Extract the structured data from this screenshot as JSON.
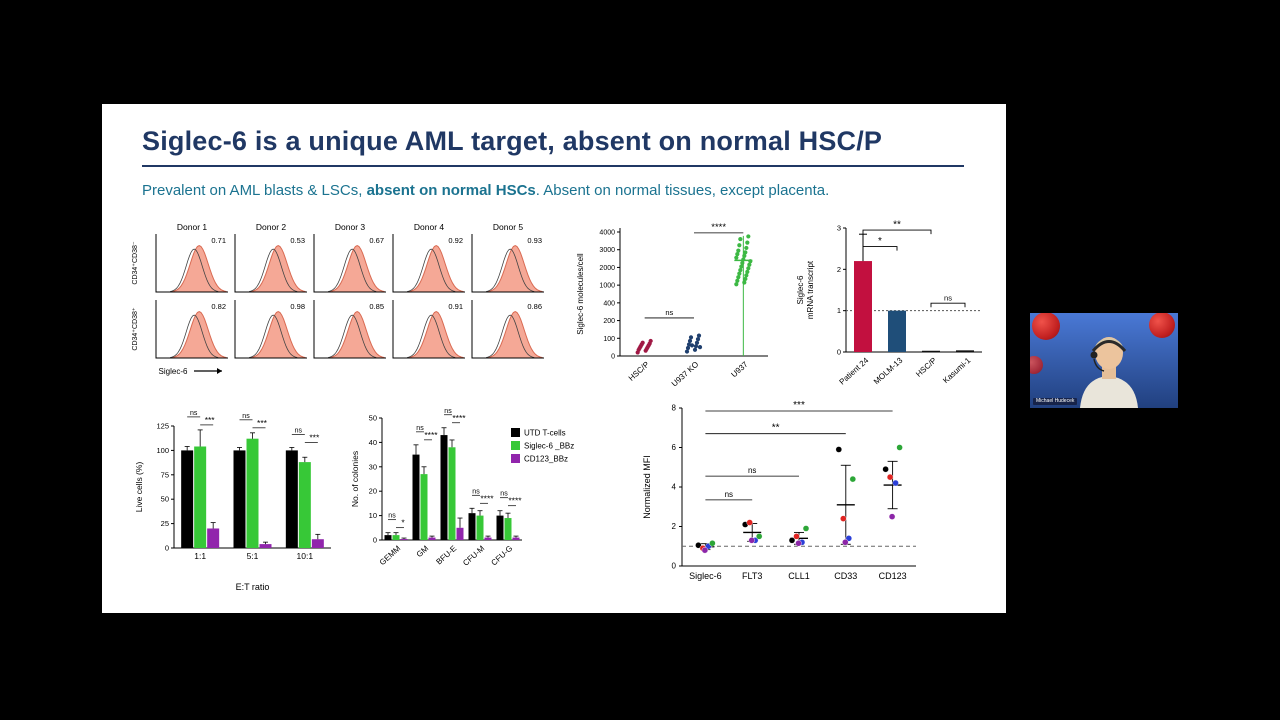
{
  "slide": {
    "title": "Siglec-6 is a unique AML target, absent on normal HSC/P",
    "subtitle_pre": "Prevalent on AML blasts & LSCs, ",
    "subtitle_bold": "absent on normal HSCs",
    "subtitle_post": ". Absent on normal tissues, except placenta.",
    "title_color": "#203864",
    "subtitle_color": "#1b7390"
  },
  "webcam": {
    "name_label": "Michael Hudecek"
  },
  "chart_data": [
    {
      "id": "flow",
      "type": "histogram-grid",
      "columns": [
        "Donor 1",
        "Donor 2",
        "Donor 3",
        "Donor 4",
        "Donor 5"
      ],
      "rows": [
        "CD34⁺CD38⁻",
        "CD34⁺CD38⁺"
      ],
      "values": [
        [
          0.71,
          0.53,
          0.67,
          0.92,
          0.93
        ],
        [
          0.82,
          0.98,
          0.85,
          0.91,
          0.86
        ]
      ],
      "xlabel": "Siglec-6",
      "fill_color": "#f5a896",
      "stroke_color": "#d96a52"
    },
    {
      "id": "scatter",
      "type": "scatter",
      "ylabel": "Siglec-6 molecules/cell",
      "categories": [
        "HSC/P",
        "U937 KO",
        "U937"
      ],
      "group_colors": [
        "#a01844",
        "#1f3f6e",
        "#3cb843"
      ],
      "ticks": [
        0,
        100,
        200,
        400,
        1000,
        2000,
        3000,
        4000
      ],
      "points": [
        [
          20,
          30,
          35,
          40,
          45,
          50,
          55,
          60,
          65,
          70,
          75,
          85
        ],
        [
          25,
          35,
          45,
          55,
          65,
          75,
          85,
          95,
          105,
          115,
          60,
          50
        ],
        [
          1050,
          1150,
          1250,
          1350,
          1450,
          1550,
          1650,
          1750,
          1850,
          1950,
          2050,
          2150,
          2250,
          2350,
          2450,
          2550,
          2650,
          2750,
          2850,
          2950,
          3100,
          3250,
          3400,
          3600,
          3750
        ]
      ],
      "mean_line": 2400,
      "annotations": [
        {
          "label": "ns",
          "from": 0,
          "to": 1,
          "y": 230
        },
        {
          "label": "****",
          "from": 1,
          "to": 2,
          "y": 3950
        }
      ]
    },
    {
      "id": "mrna",
      "type": "bar",
      "ylabel_lines": [
        "Siglec-6",
        "mRNA transcript"
      ],
      "categories": [
        "Patient 24",
        "MOLM-13",
        "HSC/P",
        "Kasumi-1"
      ],
      "values": [
        2.2,
        1.0,
        0.03,
        0.04
      ],
      "errors": [
        0.65,
        0,
        0,
        0
      ],
      "colors": [
        "#c2103f",
        "#1f4e79",
        "#111111",
        "#111111"
      ],
      "ylim": [
        0,
        3
      ],
      "yticks": [
        0,
        1,
        2,
        3
      ],
      "dashed_line": 1,
      "annotations": [
        {
          "label": "*",
          "from": 0,
          "to": 1,
          "y": 2.55
        },
        {
          "label": "**",
          "from": 0,
          "to": 2,
          "y": 2.95
        },
        {
          "label": "ns",
          "from": 2,
          "to": 3,
          "y": 1.18
        }
      ]
    },
    {
      "id": "livecells",
      "type": "grouped-bar",
      "ylabel": "Live cells (%)",
      "xlabel": "E:T ratio",
      "categories": [
        "1:1",
        "5:1",
        "10:1"
      ],
      "series": [
        {
          "name": "UTD T-cells",
          "color": "#000000",
          "values": [
            100,
            100,
            100
          ],
          "errors": [
            4,
            3,
            3
          ]
        },
        {
          "name": "Siglec-6 _BBz",
          "color": "#37c837",
          "values": [
            104,
            112,
            88
          ],
          "errors": [
            17,
            6,
            5
          ]
        },
        {
          "name": "CD123_BBz",
          "color": "#9125ac",
          "values": [
            20,
            4,
            9
          ],
          "errors": [
            6,
            2,
            5
          ]
        }
      ],
      "ylim": [
        0,
        125
      ],
      "yticks": [
        0,
        25,
        50,
        75,
        100,
        125
      ],
      "group_annotations": [
        [
          "ns",
          "***"
        ],
        [
          "ns",
          "***"
        ],
        [
          "ns",
          "***"
        ]
      ]
    },
    {
      "id": "colonies",
      "type": "grouped-bar",
      "ylabel": "No. of colonies",
      "categories": [
        "GEMM",
        "GM",
        "BFU-E",
        "CFU-M",
        "CFU-G"
      ],
      "rotate_xlabels": true,
      "legend": true,
      "series": [
        {
          "name": "UTD T-cells",
          "color": "#000000",
          "values": [
            2,
            35,
            43,
            11,
            10
          ],
          "errors": [
            1,
            4,
            3,
            2,
            2
          ]
        },
        {
          "name": "Siglec-6 _BBz",
          "color": "#37c837",
          "values": [
            2,
            27,
            38,
            10,
            9
          ],
          "errors": [
            1,
            3,
            3,
            2,
            2
          ]
        },
        {
          "name": "CD123_BBz",
          "color": "#9125ac",
          "values": [
            0.4,
            1,
            5,
            1,
            1
          ],
          "errors": [
            0.4,
            0.6,
            4,
            0.6,
            0.6
          ]
        }
      ],
      "ylim": [
        0,
        50
      ],
      "yticks": [
        0,
        10,
        20,
        30,
        40,
        50
      ],
      "group_annotations": [
        [
          "ns",
          "*"
        ],
        [
          "ns",
          "****"
        ],
        [
          "ns",
          "****"
        ],
        [
          "ns",
          "****"
        ],
        [
          "ns",
          "****"
        ]
      ]
    },
    {
      "id": "mfi",
      "type": "dot",
      "ylabel": "Normalized MFI",
      "categories": [
        "Siglec-6",
        "FLT3",
        "CLL1",
        "CD33",
        "CD123"
      ],
      "dot_colors": [
        "#000000",
        "#e02421",
        "#2b3fd8",
        "#2ca637",
        "#8c26a8"
      ],
      "points": [
        [
          1.05,
          0.9,
          1.0,
          1.15,
          0.8
        ],
        [
          2.1,
          2.2,
          1.3,
          1.5,
          1.3
        ],
        [
          1.3,
          1.5,
          1.2,
          1.9,
          1.15
        ],
        [
          5.9,
          2.4,
          1.4,
          4.4,
          1.2
        ],
        [
          4.9,
          4.5,
          4.2,
          6.0,
          2.5
        ]
      ],
      "means": [
        0.98,
        1.7,
        1.4,
        3.1,
        4.1
      ],
      "errors": [
        0.15,
        0.45,
        0.3,
        2.0,
        1.2
      ],
      "ylim": [
        0,
        8
      ],
      "yticks": [
        0,
        2,
        4,
        6,
        8
      ],
      "dashed_line": 1,
      "annotations": [
        {
          "label": "***",
          "from": 0,
          "to": 4,
          "y": 7.85
        },
        {
          "label": "**",
          "from": 0,
          "to": 3,
          "y": 6.7
        },
        {
          "label": "ns",
          "from": 0,
          "to": 2,
          "y": 4.55
        },
        {
          "label": "ns",
          "from": 0,
          "to": 1,
          "y": 3.35
        }
      ]
    }
  ]
}
